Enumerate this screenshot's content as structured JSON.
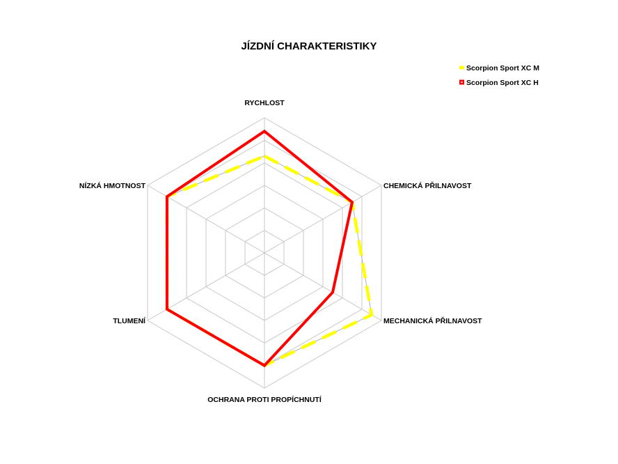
{
  "chart_data": {
    "type": "radar",
    "title": "JÍZDNÍ CHARAKTERISTIKY",
    "axes": [
      "RYCHLOST",
      "CHEMICKÁ PŘILNAVOST",
      "MECHANICKÁ PŘILNAVOST",
      "OCHRANA PROTI PROPÍCHNUTÍ",
      "TLUMENÍ",
      "NÍZKÁ HMOTNOST"
    ],
    "rlim": [
      0,
      6
    ],
    "grid_levels": 6,
    "legend_position": "top-right",
    "series": [
      {
        "name": "Scorpion Sport XC M",
        "color": "#ffff00",
        "line_style": "dashed",
        "values": [
          4.3,
          4.5,
          5.5,
          5.0,
          5.0,
          5.0
        ]
      },
      {
        "name": "Scorpion Sport XC H",
        "color": "#ff0000",
        "line_style": "solid",
        "values": [
          5.4,
          4.5,
          3.5,
          5.0,
          5.0,
          5.0
        ]
      }
    ]
  }
}
